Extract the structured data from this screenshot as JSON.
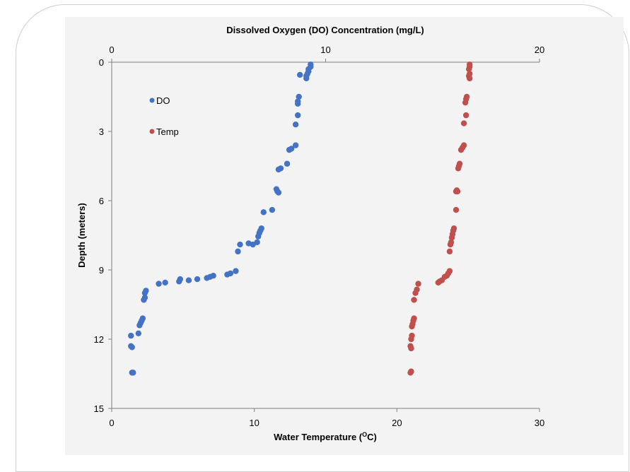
{
  "chart_data": {
    "type": "scatter",
    "title": "",
    "top_axis": {
      "label": "Dissolved Oxygen (DO) Concentration (mg/L)",
      "range": [
        0,
        20
      ],
      "ticks": [
        "0",
        "10",
        "20"
      ]
    },
    "bottom_axis": {
      "label_prefix": "Water Temperature (",
      "label_super": "O",
      "label_suffix": "C)",
      "range": [
        0,
        30
      ],
      "ticks": [
        "0",
        "10",
        "20",
        "30"
      ]
    },
    "y_axis": {
      "label": "Depth (meters)",
      "range": [
        0,
        15
      ],
      "inverted": true,
      "ticks": [
        "0",
        "3",
        "6",
        "9",
        "12",
        "15"
      ]
    },
    "grid": false,
    "legend": {
      "placement": "top-left"
    },
    "series": [
      {
        "name": "DO",
        "axis": "top",
        "color": "#4472c4",
        "points": [
          [
            9.3,
            0.1
          ],
          [
            9.3,
            0.2
          ],
          [
            9.2,
            0.3
          ],
          [
            9.2,
            0.4
          ],
          [
            9.15,
            0.5
          ],
          [
            9.1,
            0.6
          ],
          [
            9.1,
            0.7
          ],
          [
            8.8,
            0.55
          ],
          [
            8.75,
            1.5
          ],
          [
            8.7,
            1.7
          ],
          [
            8.7,
            1.8
          ],
          [
            8.7,
            2.3
          ],
          [
            8.6,
            2.7
          ],
          [
            8.6,
            3.6
          ],
          [
            8.4,
            3.75
          ],
          [
            8.3,
            3.8
          ],
          [
            8.2,
            4.4
          ],
          [
            7.9,
            4.6
          ],
          [
            7.8,
            4.65
          ],
          [
            7.7,
            5.5
          ],
          [
            7.75,
            5.6
          ],
          [
            7.8,
            5.65
          ],
          [
            7.5,
            6.4
          ],
          [
            7.1,
            6.5
          ],
          [
            7.0,
            7.2
          ],
          [
            6.95,
            7.3
          ],
          [
            6.9,
            7.4
          ],
          [
            6.85,
            7.55
          ],
          [
            6.8,
            7.8
          ],
          [
            6.6,
            7.9
          ],
          [
            6.4,
            7.85
          ],
          [
            6.0,
            7.9
          ],
          [
            5.9,
            8.2
          ],
          [
            5.8,
            9.05
          ],
          [
            5.55,
            9.15
          ],
          [
            5.4,
            9.2
          ],
          [
            4.75,
            9.25
          ],
          [
            4.6,
            9.3
          ],
          [
            4.45,
            9.35
          ],
          [
            4.0,
            9.4
          ],
          [
            3.6,
            9.45
          ],
          [
            3.2,
            9.4
          ],
          [
            3.15,
            9.5
          ],
          [
            2.5,
            9.55
          ],
          [
            2.2,
            9.6
          ],
          [
            1.6,
            9.9
          ],
          [
            1.55,
            10.0
          ],
          [
            1.55,
            10.2
          ],
          [
            1.5,
            10.3
          ],
          [
            1.45,
            11.1
          ],
          [
            1.4,
            11.2
          ],
          [
            1.35,
            11.3
          ],
          [
            1.3,
            11.4
          ],
          [
            1.25,
            11.75
          ],
          [
            0.9,
            11.85
          ],
          [
            0.9,
            12.3
          ],
          [
            0.95,
            12.35
          ],
          [
            0.95,
            13.45
          ],
          [
            1.0,
            13.45
          ]
        ]
      },
      {
        "name": "Temp",
        "axis": "bottom",
        "color": "#c0504d",
        "points": [
          [
            25.1,
            0.1
          ],
          [
            25.1,
            0.2
          ],
          [
            25.05,
            0.3
          ],
          [
            25.1,
            0.5
          ],
          [
            25.05,
            0.6
          ],
          [
            25.1,
            0.7
          ],
          [
            24.9,
            1.5
          ],
          [
            24.85,
            1.6
          ],
          [
            24.8,
            1.75
          ],
          [
            24.85,
            2.3
          ],
          [
            24.7,
            2.65
          ],
          [
            24.7,
            3.6
          ],
          [
            24.6,
            3.7
          ],
          [
            24.5,
            3.8
          ],
          [
            24.4,
            4.4
          ],
          [
            24.35,
            4.5
          ],
          [
            24.3,
            4.6
          ],
          [
            24.2,
            5.55
          ],
          [
            24.25,
            5.6
          ],
          [
            24.15,
            5.6
          ],
          [
            24.15,
            6.4
          ],
          [
            24.0,
            7.2
          ],
          [
            23.95,
            7.3
          ],
          [
            23.9,
            7.45
          ],
          [
            23.85,
            7.6
          ],
          [
            23.8,
            7.8
          ],
          [
            23.75,
            7.9
          ],
          [
            23.7,
            8.2
          ],
          [
            23.7,
            9.05
          ],
          [
            23.6,
            9.15
          ],
          [
            23.5,
            9.25
          ],
          [
            23.35,
            9.3
          ],
          [
            23.15,
            9.45
          ],
          [
            23.0,
            9.5
          ],
          [
            22.9,
            9.55
          ],
          [
            21.5,
            9.6
          ],
          [
            21.4,
            9.85
          ],
          [
            21.3,
            10.0
          ],
          [
            21.2,
            10.3
          ],
          [
            21.2,
            11.1
          ],
          [
            21.15,
            11.2
          ],
          [
            21.1,
            11.35
          ],
          [
            21.05,
            11.45
          ],
          [
            21.05,
            11.85
          ],
          [
            21.0,
            12.0
          ],
          [
            20.95,
            12.3
          ],
          [
            21.0,
            12.4
          ],
          [
            21.0,
            13.4
          ],
          [
            20.95,
            13.45
          ]
        ]
      }
    ]
  }
}
